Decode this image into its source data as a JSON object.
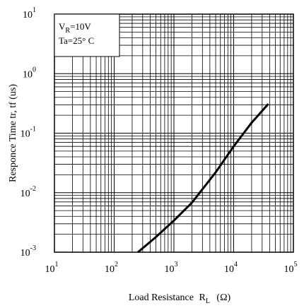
{
  "chart_data": {
    "type": "line",
    "title": "",
    "x_scale": "log",
    "y_scale": "log",
    "xlim": [
      10,
      100000
    ],
    "ylim": [
      0.001,
      10
    ],
    "xlabel": "Load Resistance",
    "xlabel_subscript_symbol": "R",
    "xlabel_subscript": "L",
    "xlabel_unit": "(Ω)",
    "ylabel": "Responce Time tr, tf  (us)",
    "x_ticks": [
      {
        "base": "10",
        "exp": "1"
      },
      {
        "base": "10",
        "exp": "2"
      },
      {
        "base": "10",
        "exp": "3"
      },
      {
        "base": "10",
        "exp": "4"
      },
      {
        "base": "10",
        "exp": "5"
      }
    ],
    "y_ticks": [
      {
        "base": "10",
        "exp": "-3"
      },
      {
        "base": "10",
        "exp": "-2"
      },
      {
        "base": "10",
        "exp": "-1"
      },
      {
        "base": "10",
        "exp": "0"
      },
      {
        "base": "10",
        "exp": "1"
      }
    ],
    "grid": true,
    "conditions": {
      "vr_symbol": "V",
      "vr_subscript": "R",
      "vr_value": "=10V",
      "ta": "Ta=25° C"
    },
    "series": [
      {
        "color": "#000000",
        "x": [
          250,
          500,
          1000,
          2000,
          5000,
          10000,
          20000,
          38000
        ],
        "y": [
          0.001,
          0.0018,
          0.0034,
          0.0068,
          0.022,
          0.06,
          0.15,
          0.31
        ]
      }
    ]
  }
}
